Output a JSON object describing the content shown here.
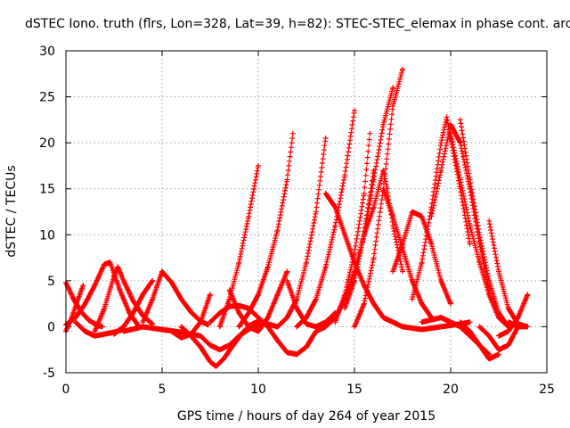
{
  "chart_data": {
    "type": "scatter",
    "title": "dSTEC Iono. truth (flrs, Lon=328, Lat=39, h=82): STEC-STEC_elemax in phase cont. arc",
    "xlabel": "GPS time / hours of day 264 of year 2015",
    "ylabel": "dSTEC  / TECUs",
    "xlim": [
      0,
      25
    ],
    "ylim": [
      -5,
      30
    ],
    "xticks": [
      "0",
      "5",
      "10",
      "15",
      "20",
      "25"
    ],
    "yticks": [
      "-5",
      "0",
      "5",
      "10",
      "15",
      "20",
      "25",
      "30"
    ],
    "grid": true,
    "marker": "+",
    "color": "#ff0000",
    "series": [
      {
        "x": [
          0.0,
          0.4,
          0.8,
          1.2,
          1.6,
          1.9
        ],
        "y": [
          4.8,
          3.0,
          1.6,
          0.7,
          0.2,
          0.0
        ]
      },
      {
        "x": [
          0.0,
          0.3,
          0.6,
          0.9
        ],
        "y": [
          -0.5,
          1.0,
          2.8,
          4.5
        ]
      },
      {
        "x": [
          0.5,
          1.0,
          1.5,
          2.0,
          2.5,
          3.0
        ],
        "y": [
          0.5,
          -0.5,
          -1.0,
          -0.8,
          -0.6,
          -0.3
        ]
      },
      {
        "x": [
          0.0,
          0.5,
          1.0,
          1.5,
          2.0,
          2.3,
          2.8,
          3.3,
          3.8
        ],
        "y": [
          0.2,
          1.0,
          2.5,
          4.5,
          6.8,
          7.0,
          4.0,
          1.5,
          0.0
        ]
      },
      {
        "x": [
          1.5,
          2.0,
          2.5,
          2.7,
          3.0,
          3.5,
          4.0,
          4.5
        ],
        "y": [
          -0.5,
          2.0,
          5.5,
          6.5,
          5.0,
          2.8,
          1.2,
          0.3
        ]
      },
      {
        "x": [
          2.5,
          3.0,
          3.5,
          4.0,
          4.5
        ],
        "y": [
          -0.8,
          0.0,
          1.5,
          3.5,
          5.0
        ]
      },
      {
        "x": [
          4.0,
          4.5,
          5.0,
          5.5,
          6.0,
          6.5,
          7.0,
          7.4
        ],
        "y": [
          0.5,
          3.0,
          6.0,
          4.8,
          3.0,
          1.6,
          0.6,
          0.2
        ]
      },
      {
        "x": [
          3.0,
          4.0,
          5.0,
          6.0,
          7.0
        ],
        "y": [
          -0.5,
          0.0,
          -0.3,
          -0.6,
          -1.0
        ]
      },
      {
        "x": [
          5.5,
          6.0,
          6.5,
          7.0,
          7.5
        ],
        "y": [
          -0.5,
          -1.2,
          -0.8,
          0.5,
          3.5
        ]
      },
      {
        "x": [
          6.0,
          6.5,
          7.0,
          7.5,
          7.8,
          8.2,
          8.7,
          9.2,
          9.6,
          10.0
        ],
        "y": [
          0.0,
          -1.0,
          -2.2,
          -3.8,
          -4.3,
          -3.5,
          -2.0,
          -0.6,
          0.2,
          0.6
        ]
      },
      {
        "x": [
          7.0,
          7.5,
          8.0,
          8.5,
          9.0,
          9.5,
          10.0,
          10.5,
          11.0
        ],
        "y": [
          -1.0,
          -2.0,
          -2.5,
          -2.0,
          -1.0,
          -0.3,
          0.2,
          0.3,
          0.0
        ]
      },
      {
        "x": [
          7.5,
          8.0,
          8.5,
          9.0,
          9.5,
          10.0,
          10.5
        ],
        "y": [
          0.5,
          1.5,
          2.2,
          2.3,
          2.0,
          1.0,
          0.0
        ]
      },
      {
        "x": [
          8.0,
          8.5,
          9.0,
          9.5,
          10.0
        ],
        "y": [
          0.0,
          3.0,
          7.0,
          12.0,
          17.5
        ]
      },
      {
        "x": [
          8.5,
          9.0,
          9.5,
          10.0,
          10.5,
          11.0,
          11.5
        ],
        "y": [
          4.0,
          1.5,
          0.0,
          -0.5,
          1.0,
          3.5,
          6.0
        ]
      },
      {
        "x": [
          9.0,
          9.5,
          10.0,
          10.5,
          11.0,
          11.5,
          11.8
        ],
        "y": [
          0.0,
          1.5,
          3.5,
          6.5,
          10.5,
          16.0,
          21.0
        ]
      },
      {
        "x": [
          10.5,
          11.0,
          11.5,
          12.0,
          12.5,
          13.0
        ],
        "y": [
          0.0,
          -1.5,
          -2.8,
          -3.0,
          -2.2,
          -0.5
        ]
      },
      {
        "x": [
          11.5,
          12.0,
          12.5,
          13.0,
          13.5,
          14.0
        ],
        "y": [
          5.0,
          2.0,
          0.3,
          0.0,
          0.5,
          1.5
        ]
      },
      {
        "x": [
          11.0,
          11.5,
          12.0,
          12.5,
          13.0,
          13.5
        ],
        "y": [
          0.0,
          1.0,
          3.0,
          7.0,
          12.5,
          20.5
        ]
      },
      {
        "x": [
          12.0,
          12.5,
          13.0,
          13.5,
          14.0,
          14.5,
          15.0
        ],
        "y": [
          0.0,
          1.0,
          3.0,
          6.5,
          11.0,
          16.5,
          23.5
        ]
      },
      {
        "x": [
          13.5,
          14.0,
          14.5,
          15.0,
          15.5,
          16.0,
          16.5
        ],
        "y": [
          14.5,
          13.0,
          10.0,
          7.0,
          4.5,
          2.5,
          1.0
        ]
      },
      {
        "x": [
          13.0,
          13.5,
          14.0,
          14.5,
          15.0,
          15.5,
          16.0
        ],
        "y": [
          -0.5,
          0.0,
          1.0,
          3.0,
          6.0,
          10.0,
          17.0
        ]
      },
      {
        "x": [
          14.0,
          14.5,
          15.0,
          15.5,
          15.8
        ],
        "y": [
          0.5,
          3.5,
          8.0,
          14.5,
          21.0
        ]
      },
      {
        "x": [
          14.5,
          15.0,
          15.5,
          16.0,
          16.5,
          17.0
        ],
        "y": [
          2.0,
          5.0,
          10.0,
          16.0,
          22.0,
          26.0
        ]
      },
      {
        "x": [
          15.0,
          15.5,
          16.0,
          16.5,
          17.0,
          17.5
        ],
        "y": [
          0.0,
          2.5,
          7.5,
          15.0,
          24.0,
          28.0
        ]
      },
      {
        "x": [
          15.5,
          16.0,
          16.5,
          16.7,
          17.0,
          17.5
        ],
        "y": [
          10.0,
          13.0,
          17.0,
          15.0,
          11.0,
          6.0
        ]
      },
      {
        "x": [
          16.5,
          17.0,
          17.5,
          18.0,
          18.5,
          19.0
        ],
        "y": [
          15.0,
          12.0,
          8.5,
          5.0,
          2.5,
          1.0
        ]
      },
      {
        "x": [
          17.0,
          17.5,
          18.0,
          18.5,
          19.0,
          19.5,
          20.0
        ],
        "y": [
          6.0,
          9.0,
          12.5,
          12.0,
          9.0,
          5.0,
          2.5
        ]
      },
      {
        "x": [
          18.0,
          18.5,
          19.0,
          19.5,
          19.8,
          20.0,
          20.5,
          21.0
        ],
        "y": [
          3.0,
          7.0,
          13.0,
          20.0,
          22.8,
          20.5,
          15.0,
          9.0
        ]
      },
      {
        "x": [
          19.0,
          19.5,
          20.0,
          20.5,
          21.0,
          21.5,
          22.0
        ],
        "y": [
          12.0,
          17.0,
          22.0,
          20.0,
          15.0,
          9.0,
          4.0
        ]
      },
      {
        "x": [
          20.0,
          20.5,
          21.0,
          21.5,
          22.0,
          22.5,
          23.0
        ],
        "y": [
          21.0,
          16.0,
          11.0,
          7.0,
          3.5,
          1.0,
          0.0
        ]
      },
      {
        "x": [
          20.5,
          21.0,
          21.5,
          22.0,
          22.5,
          23.0
        ],
        "y": [
          22.5,
          16.0,
          10.0,
          5.0,
          1.5,
          0.0
        ]
      },
      {
        "x": [
          16.5,
          17.5,
          18.5,
          19.5,
          20.5,
          21.0
        ],
        "y": [
          1.0,
          0.0,
          -0.3,
          0.0,
          0.3,
          0.5
        ]
      },
      {
        "x": [
          18.5,
          19.5,
          20.5,
          21.5,
          22.0
        ],
        "y": [
          0.5,
          1.0,
          0.0,
          -2.0,
          -3.0
        ]
      },
      {
        "x": [
          20.5,
          21.0,
          21.5,
          22.0,
          22.5
        ],
        "y": [
          0.5,
          -0.5,
          -2.0,
          -3.5,
          -3.0
        ]
      },
      {
        "x": [
          22.0,
          22.5,
          23.0,
          23.5,
          24.0
        ],
        "y": [
          11.5,
          6.0,
          2.0,
          0.3,
          0.0
        ]
      },
      {
        "x": [
          22.5,
          23.0,
          23.5,
          24.0
        ],
        "y": [
          -1.0,
          -0.5,
          1.0,
          3.5
        ]
      },
      {
        "x": [
          21.5,
          22.0,
          22.5,
          23.0,
          23.5
        ],
        "y": [
          0.0,
          -1.0,
          -2.5,
          -2.0,
          0.0
        ]
      },
      {
        "x": [
          23.0,
          23.5,
          24.0
        ],
        "y": [
          0.5,
          0.0,
          0.0
        ]
      }
    ]
  }
}
